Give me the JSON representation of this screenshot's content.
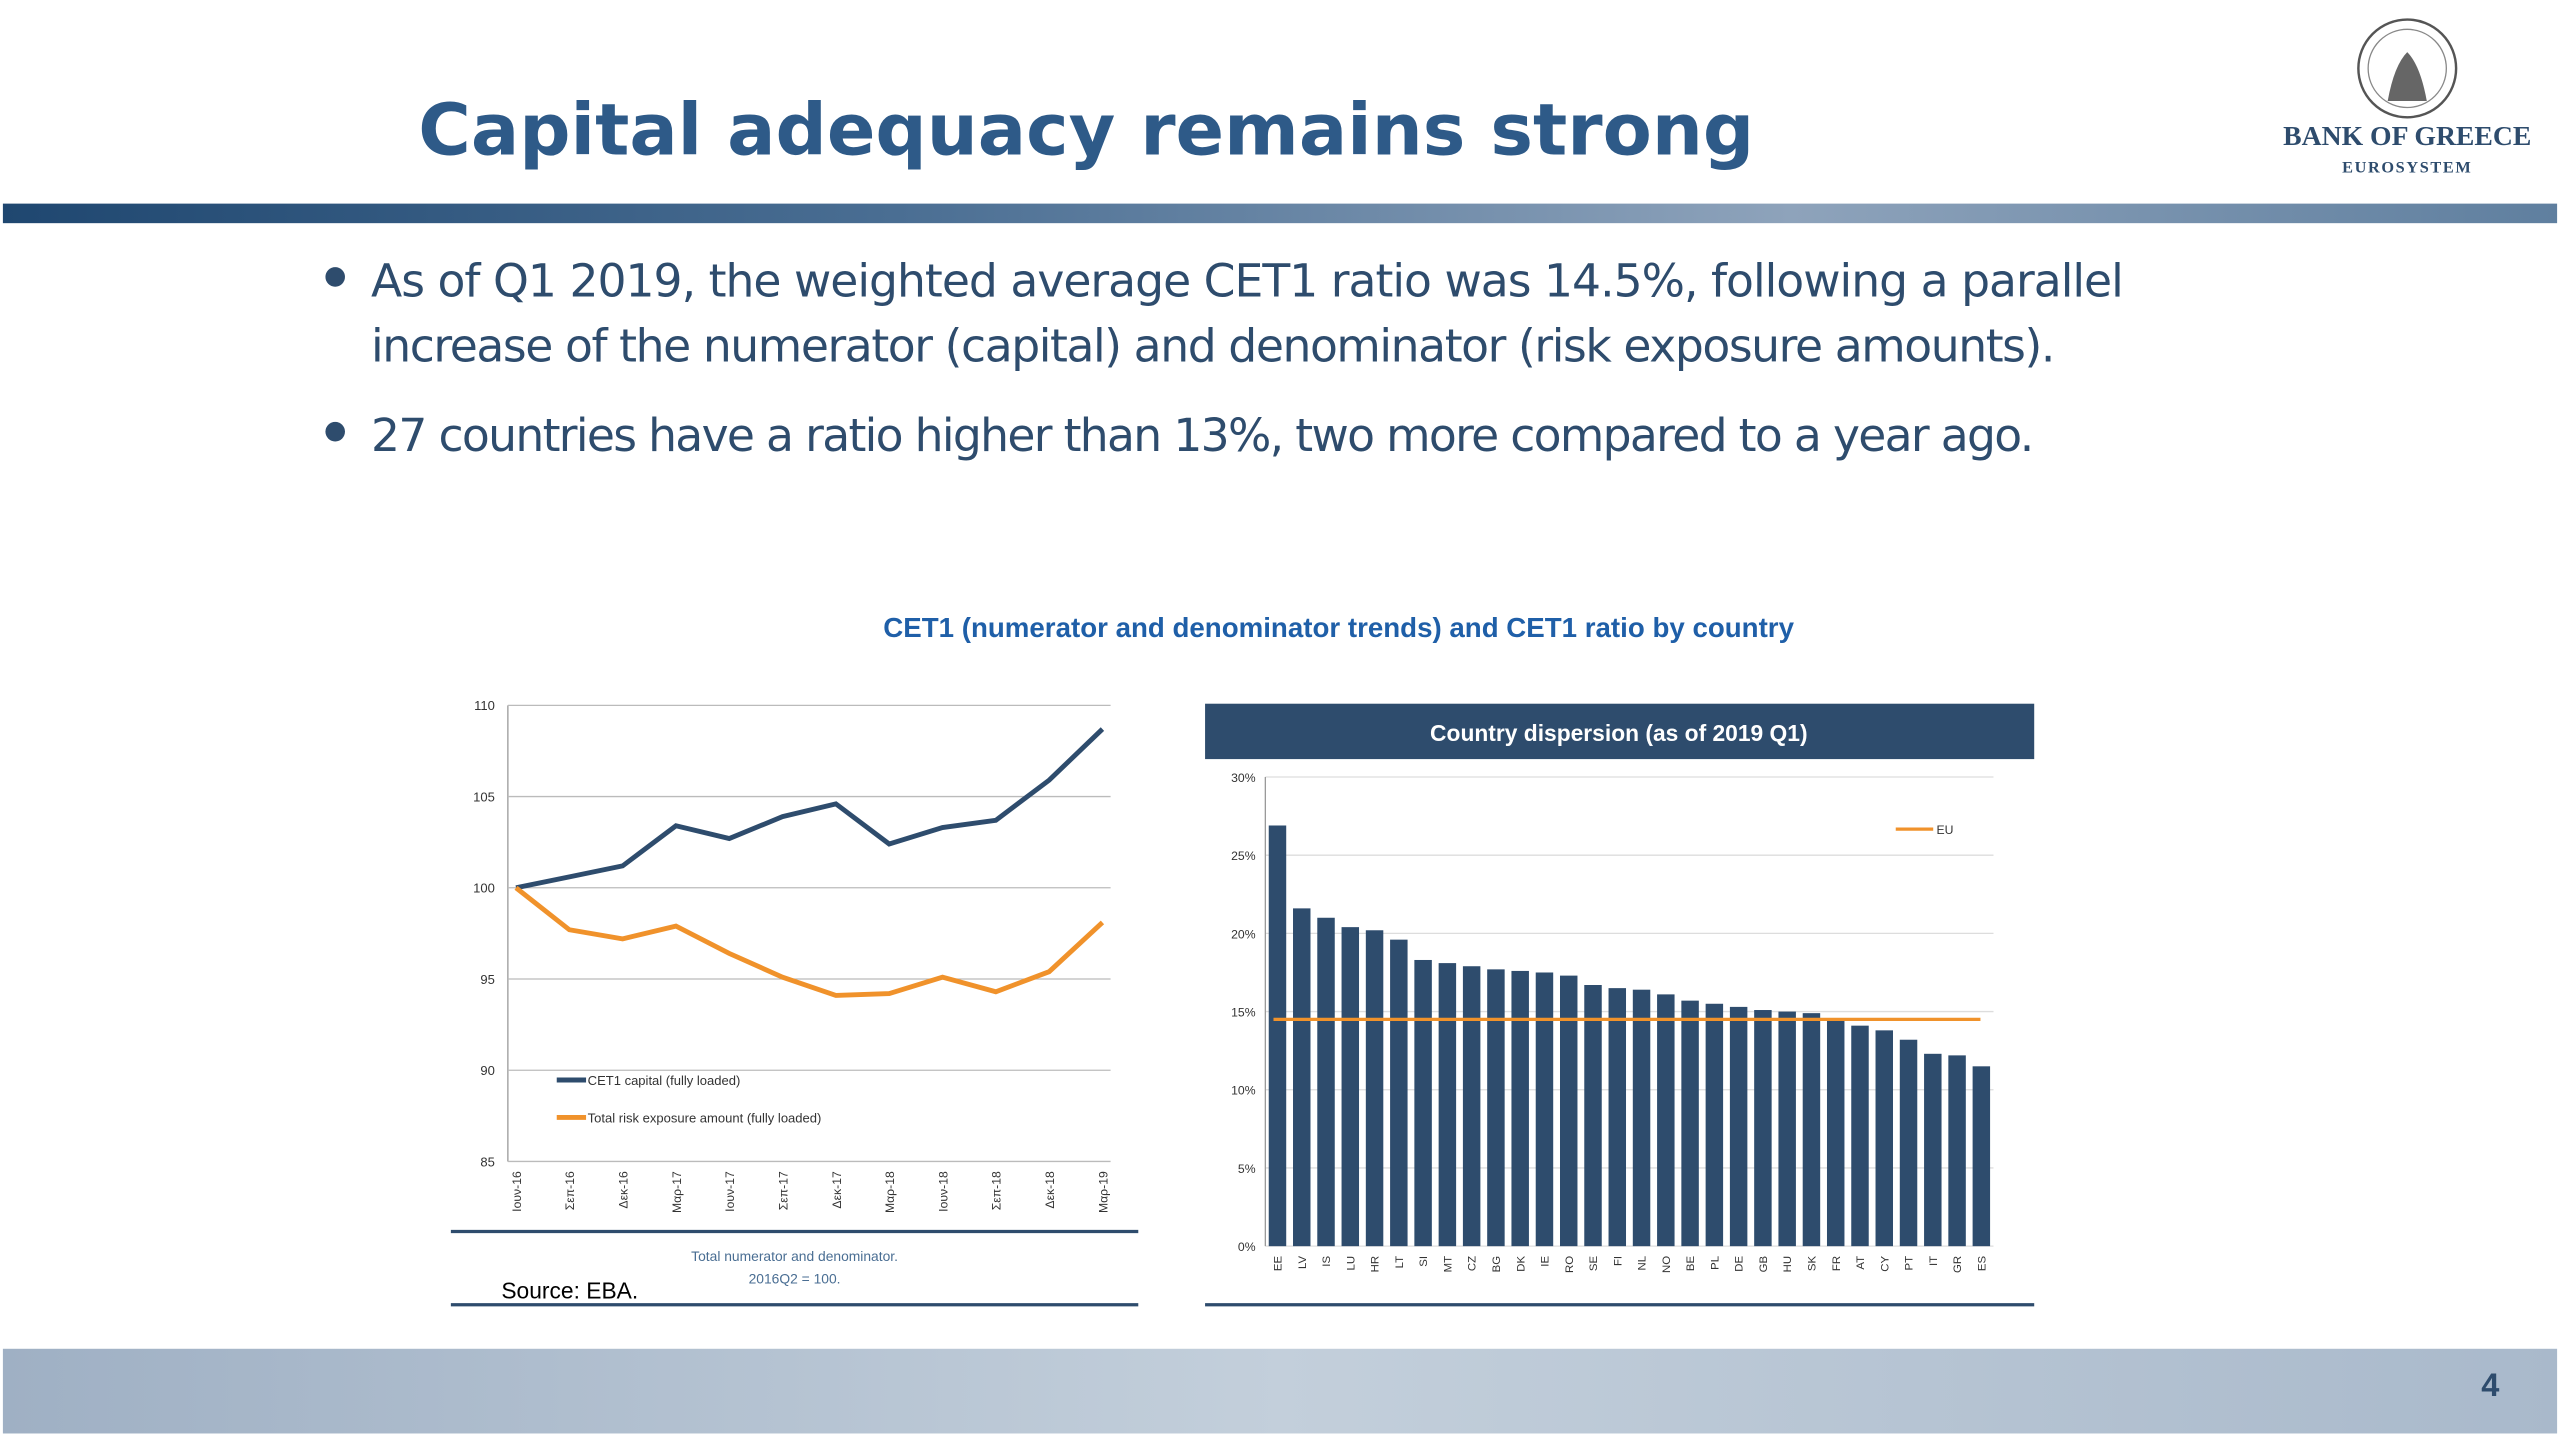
{
  "title": "Capital adequacy remains strong",
  "logo": {
    "name": "BANK OF GREECE",
    "subname": "EUROSYSTEM"
  },
  "bullets": [
    "As of Q1 2019, the weighted average CET1 ratio was 14.5%, following a parallel",
    "increase of the numerator (capital) and denominator (risk exposure amounts).",
    "27 countries have a ratio higher than 13%, two more compared to a year ago."
  ],
  "charts_heading": "CET1 (numerator and denominator trends) and CET1 ratio by country",
  "source": "Source: EBA.",
  "page_number": "4",
  "chart_data": [
    {
      "type": "line",
      "categories": [
        "Ιουν-16",
        "Σεπ-16",
        "Δεκ-16",
        "Μαρ-17",
        "Ιουν-17",
        "Σεπ-17",
        "Δεκ-17",
        "Μαρ-18",
        "Ιουν-18",
        "Σεπ-18",
        "Δεκ-18",
        "Μαρ-19"
      ],
      "series": [
        {
          "name": "CET1 capital (fully loaded)",
          "color": "#2e4c6d",
          "values": [
            100,
            100.6,
            101.2,
            103.4,
            102.7,
            103.9,
            104.6,
            102.4,
            103.3,
            103.7,
            105.9,
            108.7
          ]
        },
        {
          "name": "Total risk exposure amount (fully loaded)",
          "color": "#f0922b",
          "values": [
            100,
            97.7,
            97.2,
            97.9,
            96.4,
            95.1,
            94.1,
            94.2,
            95.1,
            94.3,
            95.4,
            98.1
          ]
        }
      ],
      "ylim": [
        85,
        110
      ],
      "yticks": [
        85,
        90,
        95,
        100,
        105,
        110
      ],
      "grid": true,
      "caption": [
        "Total numerator and denominator.",
        "2016Q2 = 100."
      ]
    },
    {
      "type": "bar",
      "title": "Country dispersion (as of 2019 Q1)",
      "categories": [
        "EE",
        "LV",
        "IS",
        "LU",
        "HR",
        "LT",
        "SI",
        "MT",
        "CZ",
        "BG",
        "DK",
        "IE",
        "RO",
        "SE",
        "FI",
        "NL",
        "NO",
        "BE",
        "PL",
        "DE",
        "GB",
        "HU",
        "SK",
        "FR",
        "AT",
        "CY",
        "PT",
        "IT",
        "GR",
        "ES"
      ],
      "values": [
        26.9,
        21.6,
        21.0,
        20.4,
        20.2,
        19.6,
        18.3,
        18.1,
        17.9,
        17.7,
        17.6,
        17.5,
        17.3,
        16.7,
        16.5,
        16.4,
        16.1,
        15.7,
        15.5,
        15.3,
        15.1,
        15.0,
        14.9,
        14.5,
        14.1,
        13.8,
        13.2,
        12.3,
        12.2,
        11.5
      ],
      "color": "#2e4c6d",
      "reference_line": {
        "name": "EU",
        "value": 14.5,
        "color": "#f0922b"
      },
      "ylim": [
        0,
        30
      ],
      "yticks": [
        {
          "value": 0,
          "label": "0%"
        },
        {
          "value": 5,
          "label": "5%"
        },
        {
          "value": 10,
          "label": "10%"
        },
        {
          "value": 15,
          "label": "15%"
        },
        {
          "value": 20,
          "label": "20%"
        },
        {
          "value": 25,
          "label": "25%"
        },
        {
          "value": 30,
          "label": "30%"
        }
      ],
      "grid": true
    }
  ]
}
